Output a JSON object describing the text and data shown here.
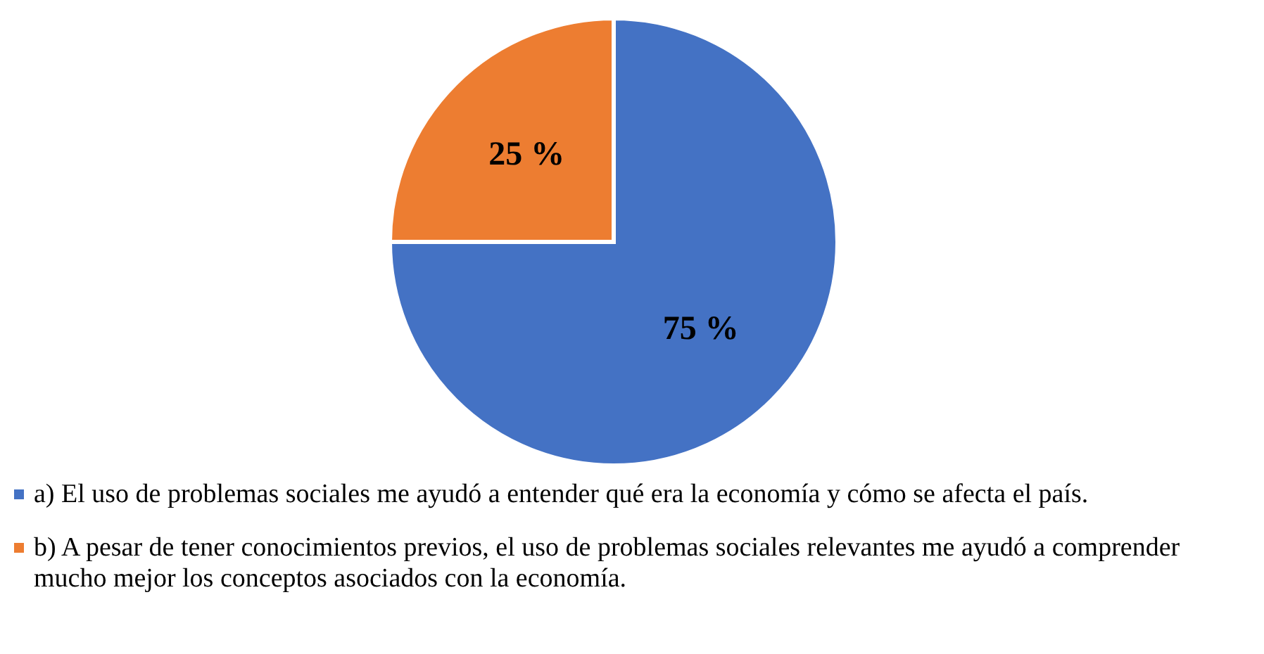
{
  "chart_data": {
    "type": "pie",
    "categories": [
      "a)  El uso de problemas sociales me ayudó a entender qué era la economía y cómo se afecta el país.",
      "b)  A pesar de tener conocimientos previos, el uso de problemas sociales relevantes me ayudó a comprender mucho mejor los conceptos asociados con la economía."
    ],
    "values": [
      75,
      25
    ],
    "colors": [
      "#4472c4",
      "#ed7d31"
    ],
    "value_labels": [
      "75 %",
      "25 %"
    ],
    "legend": "bottom"
  }
}
